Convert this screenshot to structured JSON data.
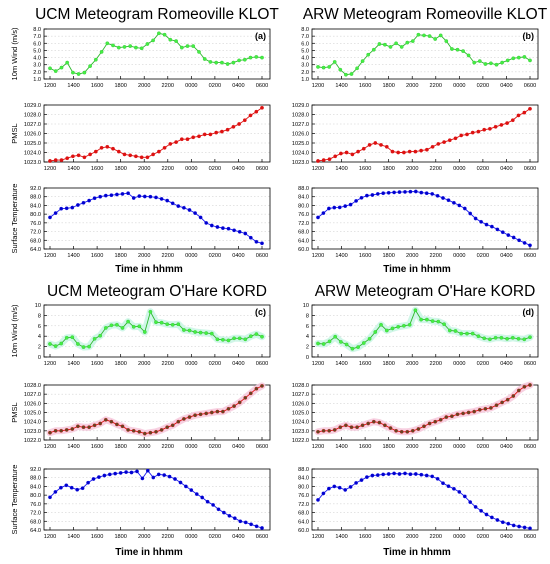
{
  "colors": {
    "wind_line": "#2db82d",
    "wind_marker": "#44ee44",
    "wind_band": "#c8f4e4",
    "pmsl_line": "#dd1111",
    "pmsl_marker": "#dd1111",
    "pmsl_marker_dark": "#664422",
    "pmsl_band": "#f6c8dc",
    "temp_line": "#1a1aee",
    "temp_marker": "#0000cc"
  },
  "x_ticks": [
    "1200",
    "1400",
    "1600",
    "1800",
    "2000",
    "2200",
    "0000",
    "0200",
    "0400",
    "0600"
  ],
  "x_axis_label": "Time in hhmm",
  "chart_data": [
    {
      "title": "UCM Meteogram Romeoville KLOT",
      "tag": "(a)",
      "xlabel": "Time in hhmm",
      "panels": [
        {
          "type": "line",
          "series": "wind",
          "ylabel": "10m Wind (m/s)",
          "ylim": [
            1.0,
            8.0
          ],
          "yticks": [
            "1.0",
            "2.0",
            "3.0",
            "4.0",
            "5.0",
            "6.0",
            "7.0",
            "8.0"
          ],
          "values": [
            2.5,
            2.1,
            2.6,
            3.3,
            1.9,
            1.7,
            1.9,
            2.8,
            3.7,
            4.8,
            6.0,
            5.7,
            5.4,
            5.5,
            5.6,
            5.4,
            5.3,
            5.9,
            6.4,
            7.4,
            7.2,
            6.5,
            6.3,
            5.4,
            5.6,
            5.6,
            4.8,
            3.8,
            3.4,
            3.3,
            3.3,
            3.1,
            3.3,
            3.6,
            3.7,
            4.0,
            4.1,
            4.0
          ]
        },
        {
          "type": "line",
          "series": "pmsl",
          "ylabel": "PMSL",
          "ylim": [
            1023.0,
            1029.0
          ],
          "yticks": [
            "1023.0",
            "1024.0",
            "1025.0",
            "1026.0",
            "1027.0",
            "1028.0",
            "1029.0"
          ],
          "values": [
            1023.1,
            1023.2,
            1023.2,
            1023.4,
            1023.6,
            1023.7,
            1023.5,
            1023.8,
            1024.1,
            1024.5,
            1024.6,
            1024.4,
            1024.1,
            1023.8,
            1023.7,
            1023.6,
            1023.5,
            1023.5,
            1023.8,
            1024.1,
            1024.5,
            1024.9,
            1025.1,
            1025.4,
            1025.4,
            1025.6,
            1025.7,
            1025.9,
            1025.9,
            1026.1,
            1026.2,
            1026.4,
            1026.7,
            1027.0,
            1027.4,
            1027.9,
            1028.3,
            1028.7
          ]
        },
        {
          "type": "line",
          "series": "temp",
          "ylabel": "Surface Temperature",
          "ylim": [
            64.0,
            92.0
          ],
          "yticks": [
            "64.0",
            "68.0",
            "72.0",
            "76.0",
            "80.0",
            "84.0",
            "88.0",
            "92.0"
          ],
          "values": [
            78.5,
            80.5,
            82.5,
            82.7,
            83.0,
            84.2,
            85.2,
            86.2,
            87.3,
            88.0,
            88.5,
            88.7,
            89.0,
            89.3,
            89.6,
            87.4,
            88.3,
            88.1,
            88.0,
            87.7,
            87.0,
            86.2,
            85.0,
            83.7,
            82.9,
            81.9,
            80.5,
            78.5,
            76.0,
            74.8,
            74.1,
            73.6,
            73.3,
            72.6,
            71.9,
            71.1,
            69.2,
            67.3,
            66.6
          ]
        }
      ]
    },
    {
      "title": "ARW Meteogram Romeoville KLOT",
      "tag": "(b)",
      "xlabel": "Time in hhmm",
      "panels": [
        {
          "type": "line",
          "series": "wind",
          "ylabel": "",
          "ylim": [
            1.0,
            8.0
          ],
          "yticks": [
            "1.0",
            "2.0",
            "3.0",
            "4.0",
            "5.0",
            "6.0",
            "7.0",
            "8.0"
          ],
          "values": [
            2.7,
            2.6,
            2.7,
            3.4,
            2.3,
            1.6,
            1.7,
            2.5,
            3.5,
            4.4,
            5.1,
            5.9,
            5.8,
            5.5,
            6.0,
            5.5,
            6.1,
            6.3,
            7.2,
            7.1,
            7.0,
            6.6,
            7.1,
            6.3,
            5.2,
            5.1,
            4.9,
            4.3,
            3.3,
            3.5,
            3.1,
            3.2,
            3.0,
            3.3,
            3.6,
            3.9,
            4.0,
            4.1,
            3.6
          ]
        },
        {
          "type": "line",
          "series": "pmsl",
          "ylabel": "",
          "ylim": [
            1023.0,
            1029.0
          ],
          "yticks": [
            "1023.0",
            "1024.0",
            "1025.0",
            "1026.0",
            "1027.0",
            "1028.0",
            "1029.0"
          ],
          "values": [
            1023.1,
            1023.2,
            1023.3,
            1023.6,
            1023.9,
            1024.0,
            1023.8,
            1024.1,
            1024.4,
            1024.8,
            1025.0,
            1024.8,
            1024.6,
            1024.1,
            1024.0,
            1024.0,
            1024.1,
            1024.1,
            1024.2,
            1024.3,
            1024.6,
            1024.9,
            1025.1,
            1025.3,
            1025.5,
            1025.8,
            1025.9,
            1026.1,
            1026.2,
            1026.4,
            1026.5,
            1026.7,
            1026.9,
            1027.1,
            1027.4,
            1027.9,
            1028.2,
            1028.6
          ]
        },
        {
          "type": "line",
          "series": "temp",
          "ylabel": "",
          "ylim": [
            60.0,
            88.0
          ],
          "yticks": [
            "60.0",
            "64.0",
            "68.0",
            "72.0",
            "76.0",
            "80.0",
            "84.0",
            "88.0"
          ],
          "values": [
            74.5,
            76.5,
            78.6,
            79.0,
            79.1,
            79.7,
            80.4,
            82.1,
            83.5,
            84.5,
            84.8,
            85.3,
            85.6,
            85.8,
            86.0,
            86.1,
            86.2,
            86.3,
            86.4,
            85.9,
            85.6,
            85.3,
            84.4,
            83.4,
            82.4,
            81.2,
            80.0,
            78.6,
            76.3,
            74.0,
            72.5,
            71.2,
            70.3,
            69.0,
            67.7,
            66.4,
            65.3,
            64.0,
            62.8,
            61.7
          ]
        }
      ]
    },
    {
      "title": "UCM Meteogram O'Hare KORD",
      "tag": "(c)",
      "xlabel": "Time in hhmm",
      "panels": [
        {
          "type": "line",
          "series": "wind",
          "ylabel": "10m Wind (m/s)",
          "ylim": [
            0,
            10
          ],
          "yticks": [
            "0",
            "2",
            "4",
            "6",
            "8",
            "10"
          ],
          "values": [
            2.5,
            2.1,
            2.6,
            3.7,
            3.8,
            2.5,
            1.9,
            2.0,
            3.5,
            4.1,
            5.6,
            6.1,
            6.2,
            5.6,
            6.8,
            5.8,
            5.9,
            4.8,
            8.7,
            6.7,
            6.6,
            6.3,
            6.2,
            6.3,
            5.2,
            5.1,
            4.8,
            4.7,
            4.6,
            4.5,
            3.4,
            3.3,
            3.2,
            3.6,
            3.6,
            3.4,
            4.0,
            4.4,
            3.9
          ]
        },
        {
          "type": "line",
          "series": "pmsl",
          "ylabel": "PMSL",
          "ylim": [
            1022.0,
            1028.0
          ],
          "yticks": [
            "1022.0",
            "1023.0",
            "1024.0",
            "1025.0",
            "1026.0",
            "1027.0",
            "1028.0"
          ],
          "values": [
            1022.8,
            1023.0,
            1023.0,
            1023.1,
            1023.2,
            1023.5,
            1023.4,
            1023.4,
            1023.6,
            1023.8,
            1024.2,
            1024.0,
            1023.7,
            1023.5,
            1023.1,
            1023.0,
            1022.9,
            1022.7,
            1022.8,
            1022.9,
            1023.1,
            1023.4,
            1023.6,
            1024.0,
            1024.3,
            1024.5,
            1024.7,
            1024.8,
            1024.9,
            1025.0,
            1025.1,
            1025.1,
            1025.4,
            1025.7,
            1026.1,
            1026.6,
            1027.1,
            1027.6,
            1027.9
          ]
        },
        {
          "type": "line",
          "series": "temp",
          "ylabel": "Surface Temperature",
          "ylim": [
            64.0,
            92.0
          ],
          "yticks": [
            "64.0",
            "68.0",
            "72.0",
            "76.0",
            "80.0",
            "84.0",
            "88.0",
            "92.0"
          ],
          "values": [
            79.0,
            81.5,
            83.4,
            84.5,
            83.4,
            82.5,
            83.2,
            85.7,
            87.4,
            88.3,
            89.0,
            89.5,
            89.9,
            90.2,
            90.6,
            90.4,
            90.9,
            87.7,
            91.2,
            88.1,
            89.5,
            89.2,
            88.5,
            87.4,
            85.8,
            84.0,
            82.3,
            80.5,
            78.9,
            77.0,
            75.5,
            73.5,
            72.0,
            70.5,
            69.4,
            68.0,
            67.5,
            66.6,
            65.7,
            64.9
          ]
        }
      ]
    },
    {
      "title": "ARW Meteogram O'Hare KORD",
      "tag": "(d)",
      "xlabel": "Time in hhmm",
      "panels": [
        {
          "type": "line",
          "series": "wind",
          "ylabel": "",
          "ylim": [
            0,
            10
          ],
          "yticks": [
            "0",
            "2",
            "4",
            "6",
            "8",
            "10"
          ],
          "values": [
            2.6,
            2.5,
            3.0,
            3.9,
            2.9,
            2.4,
            1.6,
            1.9,
            2.7,
            3.5,
            4.8,
            6.2,
            5.1,
            5.5,
            5.8,
            6.0,
            6.2,
            9.0,
            7.2,
            7.2,
            6.9,
            6.8,
            6.3,
            5.1,
            5.0,
            4.5,
            4.5,
            4.5,
            4.0,
            3.6,
            3.4,
            3.7,
            3.7,
            3.5,
            3.7,
            3.5,
            3.4,
            3.8
          ]
        },
        {
          "type": "line",
          "series": "pmsl",
          "ylabel": "",
          "ylim": [
            1022.0,
            1028.0
          ],
          "yticks": [
            "1022.0",
            "1023.0",
            "1024.0",
            "1025.0",
            "1026.0",
            "1027.0",
            "1028.0"
          ],
          "values": [
            1022.9,
            1023.0,
            1023.0,
            1023.1,
            1023.4,
            1023.6,
            1023.4,
            1023.4,
            1023.6,
            1023.8,
            1024.0,
            1023.9,
            1023.6,
            1023.3,
            1023.0,
            1022.9,
            1022.9,
            1023.0,
            1023.2,
            1023.5,
            1023.8,
            1024.0,
            1024.2,
            1024.5,
            1024.6,
            1024.8,
            1024.9,
            1025.0,
            1025.1,
            1025.3,
            1025.4,
            1025.5,
            1025.8,
            1026.1,
            1026.4,
            1026.8,
            1027.4,
            1027.8,
            1028.0
          ]
        },
        {
          "type": "line",
          "series": "temp",
          "ylabel": "",
          "ylim": [
            60.0,
            88.0
          ],
          "yticks": [
            "60.0",
            "64.0",
            "68.0",
            "72.0",
            "76.0",
            "80.0",
            "84.0",
            "88.0"
          ],
          "values": [
            73.8,
            76.8,
            79.0,
            80.0,
            79.4,
            78.4,
            79.8,
            81.6,
            82.9,
            84.3,
            85.0,
            85.2,
            85.5,
            85.7,
            86.0,
            85.7,
            86.0,
            85.6,
            85.7,
            85.4,
            85.0,
            84.6,
            83.5,
            81.5,
            80.1,
            78.9,
            77.5,
            75.4,
            72.8,
            70.6,
            68.8,
            67.1,
            65.8,
            64.6,
            63.6,
            62.9,
            62.1,
            61.6,
            61.2,
            60.8
          ]
        }
      ]
    }
  ]
}
